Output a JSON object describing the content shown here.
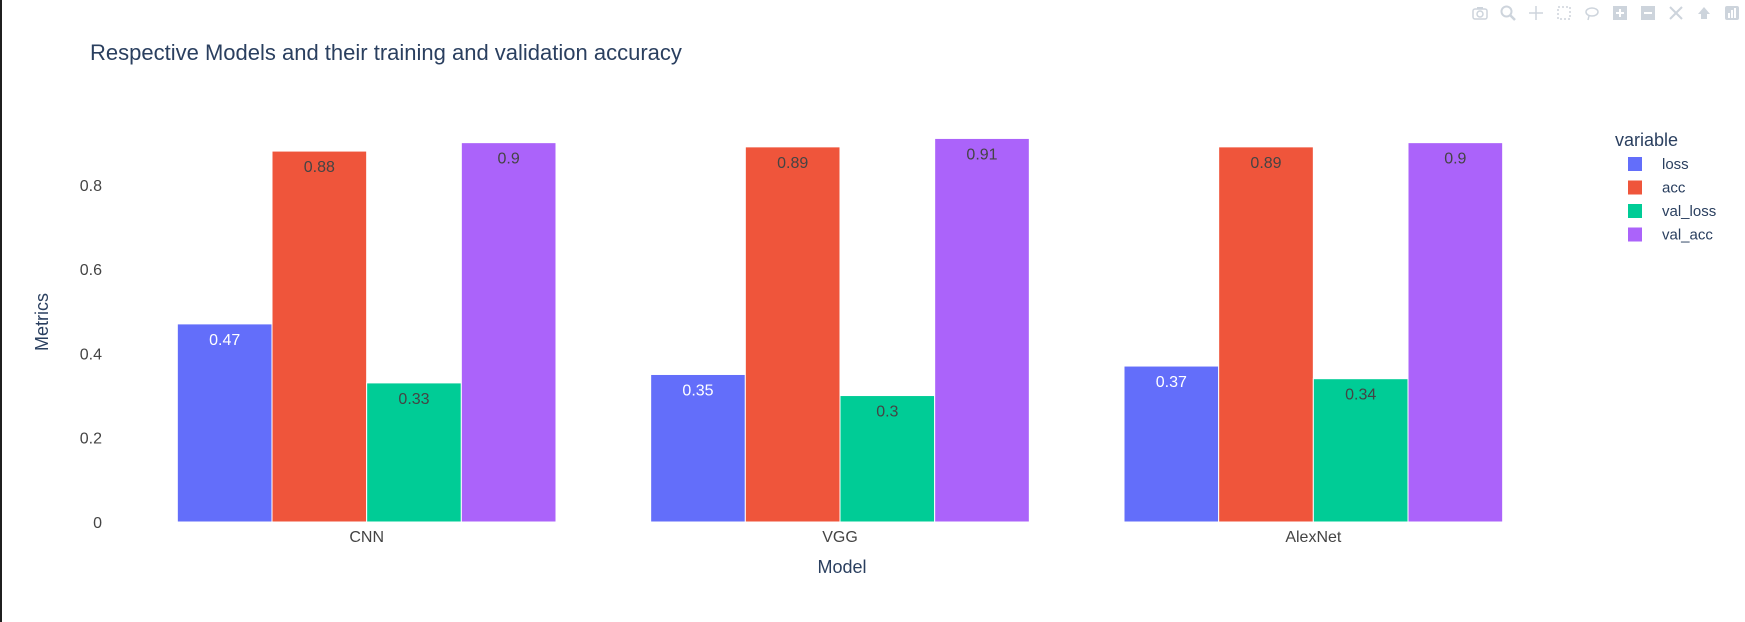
{
  "modebar": {
    "icons": [
      "camera-icon",
      "zoom-icon",
      "pan-icon",
      "select-box-icon",
      "lasso-icon",
      "zoom-in-icon",
      "zoom-out-icon",
      "autoscale-icon",
      "reset-axes-icon",
      "plotly-logo-icon"
    ]
  },
  "chart_data": {
    "type": "bar",
    "barmode": "group",
    "title": "Respective Models and their training and validation accuracy",
    "xlabel": "Model",
    "ylabel": "Metrics",
    "categories": [
      "CNN",
      "VGG",
      "AlexNet"
    ],
    "ylim": [
      0,
      0.93
    ],
    "yticks": [
      0,
      0.2,
      0.4,
      0.6,
      0.8
    ],
    "ytick_labels": [
      "0",
      "0.2",
      "0.4",
      "0.6",
      "0.8"
    ],
    "grid": false,
    "legend": {
      "title": "variable",
      "placement": "top-right"
    },
    "series": [
      {
        "name": "loss",
        "color": "#636efa",
        "label_color": "#ffffff",
        "values": [
          0.47,
          0.35,
          0.37
        ],
        "labels": [
          "0.47",
          "0.35",
          "0.37"
        ]
      },
      {
        "name": "acc",
        "color": "#ef553b",
        "label_color": "#444444",
        "values": [
          0.88,
          0.89,
          0.89
        ],
        "labels": [
          "0.88",
          "0.89",
          "0.89"
        ]
      },
      {
        "name": "val_loss",
        "color": "#00cc96",
        "label_color": "#444444",
        "values": [
          0.33,
          0.3,
          0.34
        ],
        "labels": [
          "0.33",
          "0.3",
          "0.34"
        ]
      },
      {
        "name": "val_acc",
        "color": "#ab63fa",
        "label_color": "#444444",
        "values": [
          0.9,
          0.91,
          0.9
        ],
        "labels": [
          "0.9",
          "0.91",
          "0.9"
        ]
      }
    ]
  }
}
